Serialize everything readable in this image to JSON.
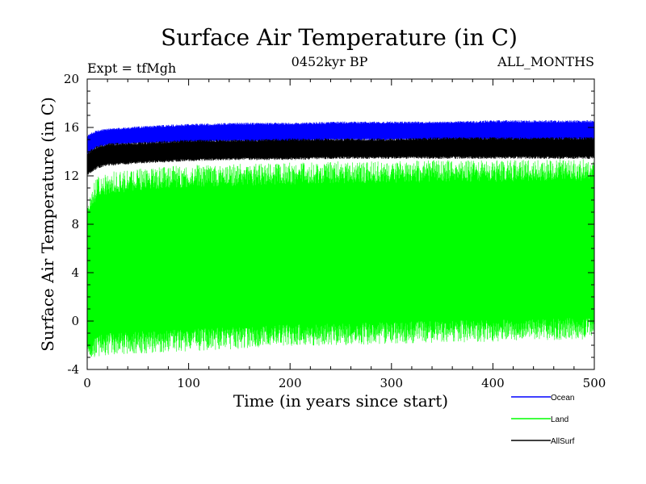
{
  "chart_data": {
    "type": "line",
    "title": "Surface Air Temperature (in C)",
    "subtitle_left": "Expt = tfMgh",
    "subtitle_center": "0452kyr BP",
    "subtitle_right": "ALL_MONTHS",
    "xlabel": "Time (in years since start)",
    "ylabel": "Surface Air Temperature (in C)",
    "xlim": [
      0,
      500
    ],
    "ylim": [
      -4,
      20
    ],
    "x_ticks": [
      0,
      100,
      200,
      300,
      400,
      500
    ],
    "y_ticks": [
      -4,
      0,
      4,
      8,
      12,
      16,
      20
    ],
    "grid": false,
    "legend_position": "bottom-right",
    "series": [
      {
        "name": "Ocean",
        "color": "#0000ff",
        "x": [
          0,
          10,
          20,
          50,
          100,
          150,
          200,
          250,
          300,
          350,
          400,
          450,
          500
        ],
        "y_upper": [
          15.4,
          15.8,
          15.9,
          16.1,
          16.3,
          16.4,
          16.4,
          16.5,
          16.5,
          16.5,
          16.6,
          16.6,
          16.6
        ],
        "y_lower": [
          13.7,
          14.3,
          14.5,
          14.6,
          14.7,
          14.8,
          14.8,
          14.9,
          14.9,
          14.9,
          14.9,
          14.9,
          14.9
        ]
      },
      {
        "name": "Land",
        "color": "#00ff00",
        "x": [
          0,
          10,
          20,
          50,
          100,
          150,
          200,
          250,
          300,
          350,
          400,
          450,
          500
        ],
        "y_upper": [
          10.5,
          12.0,
          12.3,
          12.6,
          12.9,
          13.0,
          13.1,
          13.2,
          13.2,
          13.3,
          13.3,
          13.4,
          13.4
        ],
        "y_lower": [
          -3.4,
          -3.0,
          -2.8,
          -2.7,
          -2.5,
          -2.3,
          -2.1,
          -2.0,
          -1.9,
          -1.8,
          -1.7,
          -1.6,
          -1.5
        ]
      },
      {
        "name": "AllSurf",
        "color": "#000000",
        "x": [
          0,
          10,
          20,
          50,
          100,
          150,
          200,
          250,
          300,
          350,
          400,
          450,
          500
        ],
        "y_upper": [
          14.0,
          14.5,
          14.7,
          14.8,
          15.0,
          15.0,
          15.1,
          15.1,
          15.1,
          15.2,
          15.2,
          15.2,
          15.2
        ],
        "y_lower": [
          12.0,
          12.6,
          12.8,
          13.0,
          13.2,
          13.3,
          13.3,
          13.4,
          13.4,
          13.4,
          13.4,
          13.4,
          13.4
        ]
      }
    ]
  }
}
